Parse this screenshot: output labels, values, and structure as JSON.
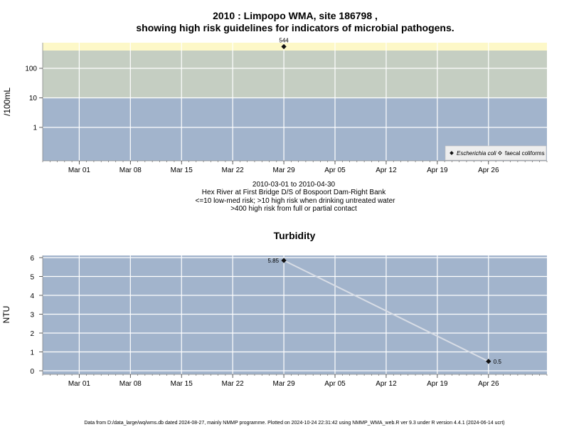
{
  "chart_data": [
    {
      "type": "scatter",
      "title": "2010 : Limpopo WMA, site 186798 ,",
      "subtitle": "showing high risk guidelines for indicators of microbial pathogens.",
      "ylabel": "/100mL",
      "y_scale": "log",
      "y_ticks": [
        1,
        10,
        100
      ],
      "x_ticks": [
        "Mar 01",
        "Mar 08",
        "Mar 15",
        "Mar 22",
        "Mar 29",
        "Apr 05",
        "Apr 12",
        "Apr 19",
        "Apr 26"
      ],
      "xlim": [
        "2010-02-24",
        "2010-05-04"
      ],
      "bands": [
        {
          "upper": 10,
          "color": "#a2b4cc"
        },
        {
          "upper": 400,
          "color": "#c5cec2"
        },
        {
          "upper": null,
          "color": "#fdf8c8"
        }
      ],
      "series": [
        {
          "name": "Escherichia coli",
          "marker": "filled-diamond",
          "points": [
            {
              "x": "2010-03-29",
              "y": 544,
              "label": "544"
            }
          ]
        },
        {
          "name": "faecal coliforms",
          "marker": "open-diamond",
          "points": []
        }
      ],
      "notes": [
        "2010-03-01 to 2010-04-30",
        "Hex River at First Bridge D/S of Bospoort Dam-Right Bank",
        "<=10 low-med risk; >10 high risk when drinking untreated water",
        ">400 high risk from full or partial contact"
      ],
      "legend_position": "bottom-right"
    },
    {
      "type": "line",
      "title": "Turbidity",
      "ylabel": "NTU",
      "ylim": [
        0,
        6
      ],
      "y_ticks": [
        0,
        1,
        2,
        3,
        4,
        5,
        6
      ],
      "x_ticks": [
        "Mar 01",
        "Mar 08",
        "Mar 15",
        "Mar 22",
        "Mar 29",
        "Apr 05",
        "Apr 12",
        "Apr 19",
        "Apr 26"
      ],
      "xlim": [
        "2010-02-24",
        "2010-05-04"
      ],
      "background": "#a2b4cc",
      "series": [
        {
          "points": [
            {
              "x": "2010-03-29",
              "y": 5.85,
              "label": "5.85"
            },
            {
              "x": "2010-04-26",
              "y": 0.5,
              "label": "0.5"
            }
          ]
        }
      ]
    }
  ],
  "footer": "Data from D:/data_large/wq/wms.db dated 2024-08-27, mainly NMMP programme. Plotted on 2024-10-24 22:31:42 using NMMP_WMA_web.R ver 9.3 under R version 4.4.1 (2024-06-14 ucrt)"
}
